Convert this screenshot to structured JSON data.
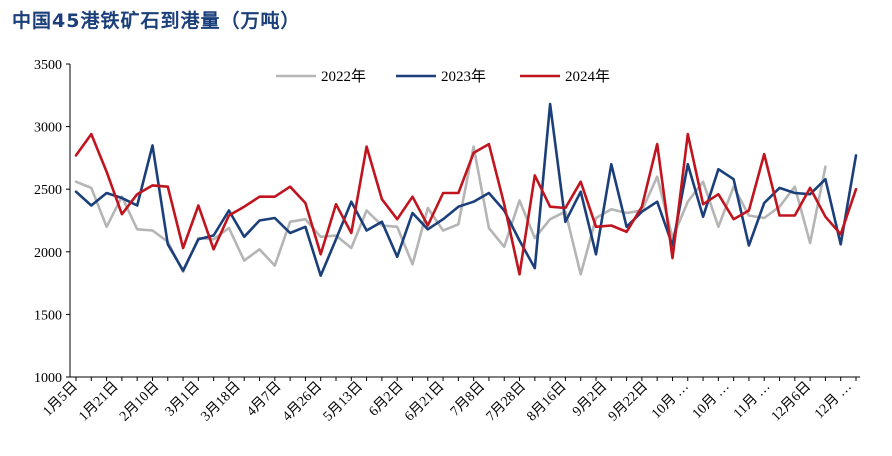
{
  "chart_data": {
    "type": "line",
    "title": "中国45港铁矿石到港量（万吨）",
    "ylim": [
      1000,
      3500
    ],
    "yticks": [
      1000,
      1500,
      2000,
      2500,
      3000,
      3500
    ],
    "grid": false,
    "legend_position": "top",
    "x_tick_labels": [
      "1月5日",
      "1月21日",
      "2月10日",
      "3月1日",
      "3月18日",
      "4月7日",
      "4月26日",
      "5月13日",
      "6月2日",
      "6月21日",
      "7月8日",
      "7月28日",
      "8月16日",
      "9月2日",
      "9月22日",
      "10月 …",
      "10月 …",
      "11月 …",
      "12月6日",
      "12月 …"
    ],
    "series": [
      {
        "name": "2022年",
        "color": "#b5b5b5",
        "values": [
          2560,
          2510,
          2200,
          2440,
          2180,
          2170,
          2080,
          1840,
          2110,
          2100,
          2190,
          1930,
          2020,
          1890,
          2240,
          2260,
          2120,
          2130,
          2030,
          2330,
          2210,
          2200,
          1900,
          2350,
          2170,
          2220,
          2840,
          2190,
          2040,
          2410,
          2110,
          2260,
          2320,
          1820,
          2270,
          2340,
          2310,
          2330,
          2600,
          2110,
          2400,
          2560,
          2200,
          2520,
          2290,
          2270,
          2360,
          2520,
          2070,
          2680
        ]
      },
      {
        "name": "2023年",
        "color": "#1b3f7a",
        "values": [
          2480,
          2370,
          2470,
          2430,
          2370,
          2850,
          2060,
          1850,
          2100,
          2130,
          2330,
          2120,
          2250,
          2270,
          2150,
          2200,
          1810,
          2100,
          2400,
          2170,
          2240,
          1960,
          2310,
          2180,
          2260,
          2360,
          2400,
          2470,
          2330,
          2090,
          1870,
          3180,
          2240,
          2480,
          1980,
          2700,
          2200,
          2320,
          2400,
          2050,
          2700,
          2280,
          2660,
          2580,
          2050,
          2390,
          2510,
          2470,
          2460,
          2580,
          2060,
          2770
        ]
      },
      {
        "name": "2024年",
        "color": "#c0141e",
        "values": [
          2770,
          2940,
          2640,
          2300,
          2460,
          2530,
          2520,
          2030,
          2370,
          2020,
          2290,
          2360,
          2440,
          2440,
          2520,
          2390,
          1980,
          2380,
          2150,
          2840,
          2420,
          2260,
          2440,
          2210,
          2470,
          2470,
          2790,
          2860,
          2380,
          1820,
          2610,
          2360,
          2350,
          2560,
          2200,
          2210,
          2160,
          2360,
          2860,
          1950,
          2940,
          2380,
          2460,
          2260,
          2330,
          2780,
          2290,
          2290,
          2510,
          2280,
          2140,
          2500
        ]
      }
    ]
  }
}
